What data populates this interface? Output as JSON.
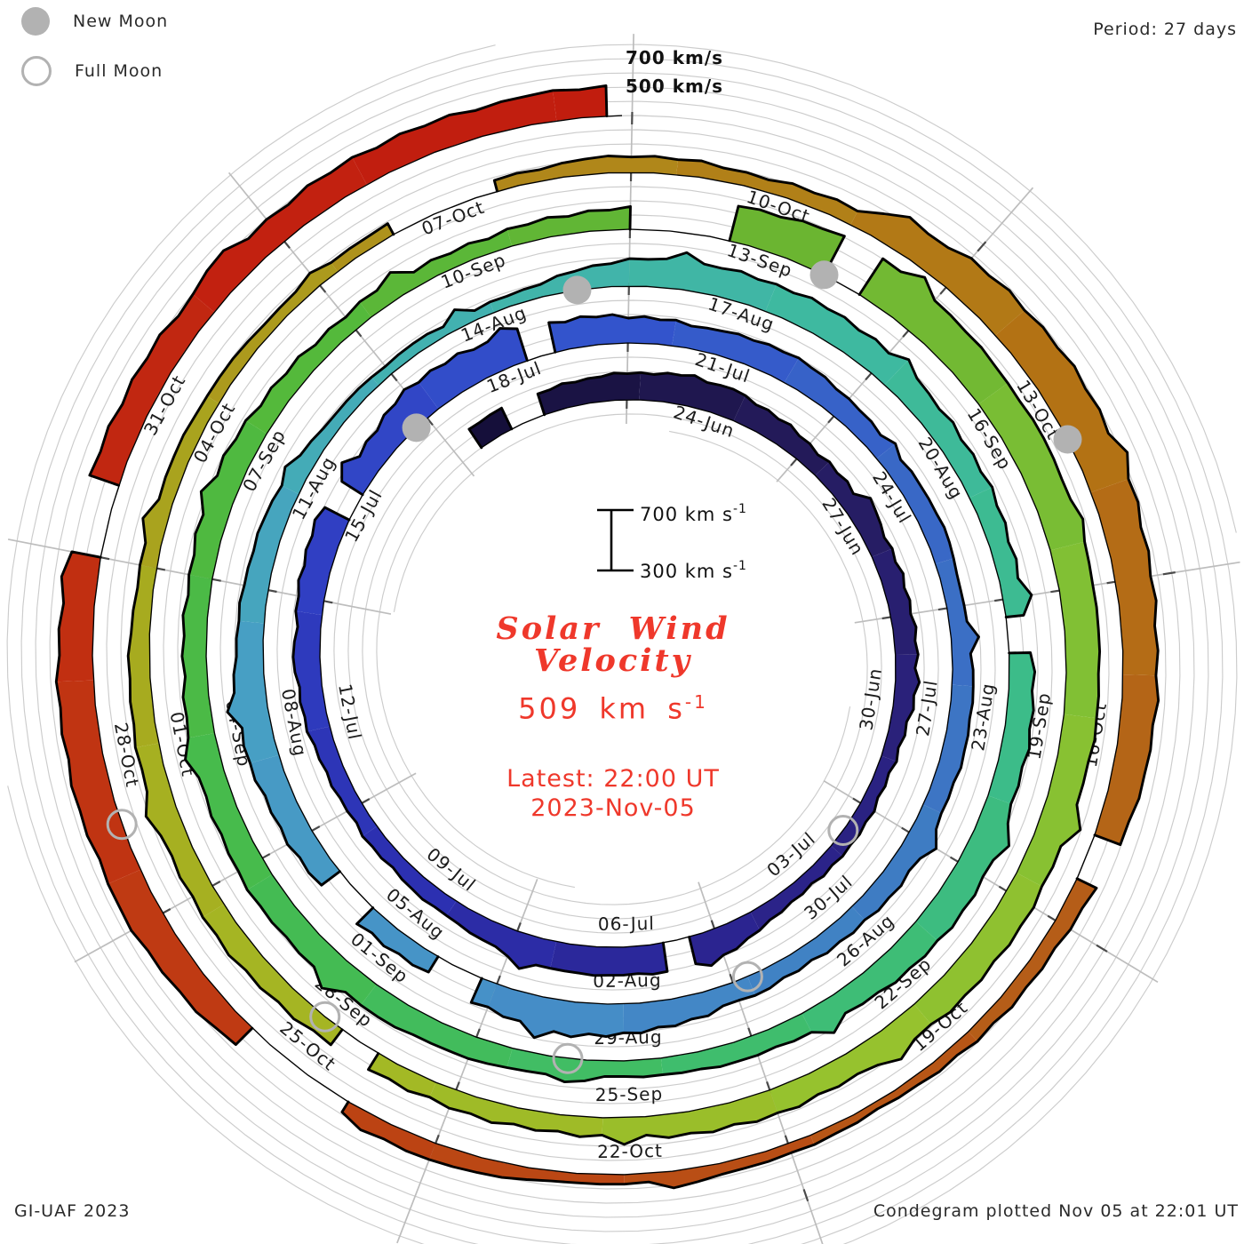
{
  "header": {
    "period_label": "Period: 27 days"
  },
  "legend": {
    "new_moon": "New Moon",
    "full_moon": "Full Moon"
  },
  "center": {
    "title_line1": "Solar Wind",
    "title_line2": "Velocity",
    "velocity_value": "509",
    "velocity_unit": "km s",
    "velocity_exp": "-1",
    "latest_label": "Latest: 22:00 UT",
    "latest_date": "2023-Nov-05"
  },
  "footer": {
    "left": "GI-UAF 2023",
    "right": "Condegram plotted Nov 05 at 22:01 UT"
  },
  "chart_data": {
    "type": "area",
    "subtype": "condegram-polar-spiral",
    "title": "Solar Wind Velocity",
    "units": "km/s",
    "period_days": 27,
    "latest_value_km_s": 509,
    "velocity_axis": {
      "base": 300,
      "top": 700,
      "gridline_step": 100,
      "labeled_gridlines": [
        {
          "text": "700 km/s",
          "level": 700
        },
        {
          "text": "500 km/s",
          "level": 500
        }
      ]
    },
    "scale_bar": {
      "top_label": "700 km s",
      "bottom_label": "300 km s",
      "exp": "-1"
    },
    "time": {
      "origin_date": "2023-06-21",
      "start_day_offset": 0.4,
      "end_day_offset": 137.92,
      "latest": "2023-11-05 22:00 UT"
    },
    "date_labels": [
      {
        "d": 3,
        "text": "24-Jun"
      },
      {
        "d": 6,
        "text": "27-Jun"
      },
      {
        "d": 9,
        "text": "30-Jun"
      },
      {
        "d": 12,
        "text": "03-Jul"
      },
      {
        "d": 15,
        "text": "06-Jul"
      },
      {
        "d": 18,
        "text": "09-Jul"
      },
      {
        "d": 21,
        "text": "12-Jul"
      },
      {
        "d": 24,
        "text": "15-Jul"
      },
      {
        "d": 27,
        "text": "18-Jul"
      },
      {
        "d": 30,
        "text": "21-Jul"
      },
      {
        "d": 33,
        "text": "24-Jul"
      },
      {
        "d": 36,
        "text": "27-Jul"
      },
      {
        "d": 39,
        "text": "30-Jul"
      },
      {
        "d": 42,
        "text": "02-Aug"
      },
      {
        "d": 45,
        "text": "05-Aug"
      },
      {
        "d": 48,
        "text": "08-Aug"
      },
      {
        "d": 51,
        "text": "11-Aug"
      },
      {
        "d": 54,
        "text": "14-Aug"
      },
      {
        "d": 57,
        "text": "17-Aug"
      },
      {
        "d": 60,
        "text": "20-Aug"
      },
      {
        "d": 63,
        "text": "23-Aug"
      },
      {
        "d": 66,
        "text": "26-Aug"
      },
      {
        "d": 69,
        "text": "29-Aug"
      },
      {
        "d": 72,
        "text": "01-Sep"
      },
      {
        "d": 75,
        "text": "04-Sep"
      },
      {
        "d": 78,
        "text": "07-Sep"
      },
      {
        "d": 81,
        "text": "10-Sep"
      },
      {
        "d": 84,
        "text": "13-Sep"
      },
      {
        "d": 87,
        "text": "16-Sep"
      },
      {
        "d": 90,
        "text": "19-Sep"
      },
      {
        "d": 93,
        "text": "22-Sep"
      },
      {
        "d": 96,
        "text": "25-Sep"
      },
      {
        "d": 99,
        "text": "28-Sep"
      },
      {
        "d": 102,
        "text": "01-Oct"
      },
      {
        "d": 105,
        "text": "04-Oct"
      },
      {
        "d": 108,
        "text": "07-Oct"
      },
      {
        "d": 111,
        "text": "10-Oct"
      },
      {
        "d": 114,
        "text": "13-Oct"
      },
      {
        "d": 117,
        "text": "16-Oct"
      },
      {
        "d": 120,
        "text": "19-Oct"
      },
      {
        "d": 123,
        "text": "22-Oct"
      },
      {
        "d": 126,
        "text": "25-Oct"
      },
      {
        "d": 129,
        "text": "28-Oct"
      },
      {
        "d": 132,
        "text": "31-Oct"
      }
    ],
    "moons": {
      "new_moon_days": [
        26.8,
        56.4,
        86.0,
        115.7
      ],
      "full_moon_days": [
        12.5,
        41.8,
        71.0,
        100.4,
        129.8
      ]
    },
    "gaps": [
      [
        1.2,
        1.5
      ],
      [
        15.4,
        15.7
      ],
      [
        25.2,
        25.5
      ],
      [
        28.6,
        28.9
      ],
      [
        45.4,
        45.7
      ],
      [
        47.0,
        47.3
      ],
      [
        63.4,
        63.6
      ],
      [
        84.2,
        84.9
      ],
      [
        86.1,
        86.3
      ],
      [
        99.9,
        100.2
      ],
      [
        109.0,
        109.7
      ],
      [
        119.3,
        119.6
      ],
      [
        126.9,
        127.8
      ],
      [
        132.2,
        132.5
      ]
    ],
    "series": [
      {
        "name": "solar wind velocity (km/s)",
        "sampling": "daily estimates, day 0 = 2023-06-21",
        "values": [
          440,
          465,
          460,
          480,
          520,
          470,
          440,
          430,
          445,
          460,
          440,
          410,
          400,
          395,
          410,
          490,
          510,
          495,
          470,
          430,
          400,
          420,
          440,
          470,
          490,
          500,
          480,
          540,
          530,
          510,
          480,
          470,
          490,
          460,
          430,
          440,
          425,
          440,
          455,
          450,
          440,
          430,
          420,
          500,
          540,
          480,
          440,
          450,
          490,
          510,
          500,
          480,
          440,
          400,
          370,
          360,
          400,
          480,
          510,
          500,
          490,
          470,
          450,
          440,
          470,
          480,
          520,
          500,
          470,
          430,
          420,
          420,
          450,
          490,
          480,
          500,
          480,
          460,
          470,
          480,
          450,
          420,
          400,
          430,
          440,
          560,
          600,
          580,
          560,
          540,
          550,
          530,
          510,
          520,
          500,
          480,
          470,
          450,
          430,
          420,
          430,
          450,
          470,
          460,
          440,
          420,
          400,
          390,
          380,
          370,
          390,
          410,
          395,
          420,
          560,
          600,
          580,
          560,
          540,
          500,
          420,
          380,
          360,
          370,
          360,
          380,
          420,
          390,
          480,
          540,
          560,
          540,
          520,
          500,
          490,
          495,
          500,
          505,
          509
        ]
      }
    ],
    "color_stops": [
      [
        0,
        "#130d35"
      ],
      [
        5,
        "#221955"
      ],
      [
        10,
        "#2a2178"
      ],
      [
        15,
        "#2b2490"
      ],
      [
        20,
        "#2c31b2"
      ],
      [
        25,
        "#3040c4"
      ],
      [
        30,
        "#3355cc"
      ],
      [
        35,
        "#3a6ac6"
      ],
      [
        40,
        "#3f7ec3"
      ],
      [
        45,
        "#4690c8"
      ],
      [
        50,
        "#47a0c4"
      ],
      [
        55,
        "#42b2ae"
      ],
      [
        60,
        "#3eba9e"
      ],
      [
        65,
        "#3cbc86"
      ],
      [
        70,
        "#40bd68"
      ],
      [
        75,
        "#45bb4e"
      ],
      [
        80,
        "#52b93c"
      ],
      [
        85,
        "#68b431"
      ],
      [
        90,
        "#7fc035"
      ],
      [
        95,
        "#95c22e"
      ],
      [
        100,
        "#a4b824"
      ],
      [
        105,
        "#a8a81e"
      ],
      [
        110,
        "#b08a1b"
      ],
      [
        115,
        "#b37414"
      ],
      [
        120,
        "#b55f18"
      ],
      [
        125,
        "#bb4814"
      ],
      [
        130,
        "#c03512"
      ],
      [
        135,
        "#c22110"
      ],
      [
        138,
        "#c11c0e"
      ]
    ],
    "geometry": {
      "center": [
        700,
        742
      ],
      "r0": 285,
      "pitch": 64,
      "grid_r_min": 262,
      "grid_r_max": 706,
      "spoke_count": 9,
      "label_r_offset": -16,
      "label_angle_offset_days": 0.45,
      "moon_radius": 16,
      "grid_color": "#cccccc",
      "spoke_color": "#bdbdbd",
      "outline_color": "#000000",
      "moon_color": "#b2b2b2",
      "accent_red": "#ef382b"
    },
    "legend_position": "top-left",
    "grid": "polar spiral, velocity gridlines every 100 km/s, spokes every 3 days (40 deg)"
  }
}
